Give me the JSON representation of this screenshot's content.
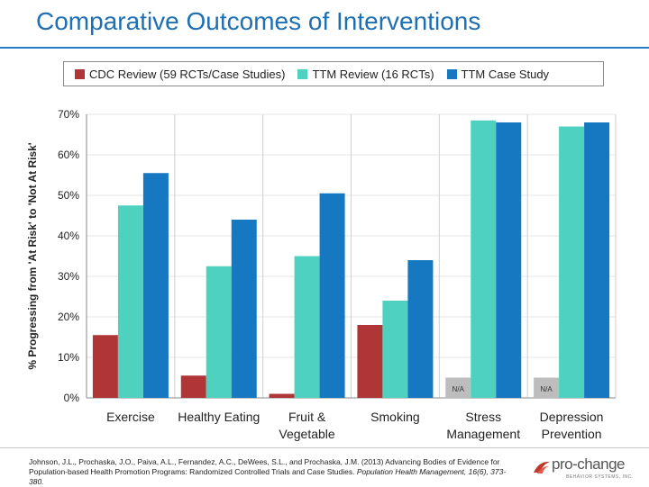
{
  "slide": {
    "title": "Comparative Outcomes of Interventions"
  },
  "citation": {
    "text": "Johnson, J.L., Prochaska, J.O., Paiva, A.L., Fernandez, A.C., DeWees, S.L., and Prochaska, J.M. (2013) Advancing Bodies of Evidence for Population-based Health Promotion Programs: Randomized Controlled Trials and Case Studies. ",
    "journal": "Population Health Management, 16(6), 373-380."
  },
  "logo": {
    "name": "pro-change",
    "subtitle": "BEHAVIOR SYSTEMS, INC."
  },
  "colors": {
    "accent": "#1f6fb3",
    "cdc": "#b03537",
    "ttm_review": "#4fd1c0",
    "ttm_case": "#1578c0",
    "na": "#bdbdbd"
  },
  "chart_data": {
    "type": "bar",
    "ylabel": "% Progressing from 'At Risk' to 'Not At Risk'",
    "xlabel": "",
    "ylim": [
      0,
      70
    ],
    "yticks": [
      0,
      10,
      20,
      30,
      40,
      50,
      60,
      70
    ],
    "ytick_labels": [
      "0%",
      "10%",
      "20%",
      "30%",
      "40%",
      "50%",
      "60%",
      "70%"
    ],
    "categories": [
      [
        "Exercise"
      ],
      [
        "Healthy Eating"
      ],
      [
        "Fruit &",
        "Vegetable"
      ],
      [
        "Smoking"
      ],
      [
        "Stress",
        "Management"
      ],
      [
        "Depression",
        "Prevention"
      ]
    ],
    "legend_position": "top",
    "series": [
      {
        "name": "CDC Review (59 RCTs/Case Studies)",
        "color": "#b03537",
        "values": [
          15.5,
          5.5,
          1,
          18,
          null,
          null
        ]
      },
      {
        "name": "TTM Review (16 RCTs)",
        "color": "#4fd1c0",
        "values": [
          47.5,
          32.5,
          35,
          24,
          68.5,
          67
        ]
      },
      {
        "name": "TTM Case Study",
        "color": "#1578c0",
        "values": [
          55.5,
          44,
          50.5,
          34,
          68,
          68
        ]
      }
    ],
    "na_label": "N/A",
    "na_placeholder_value": 5
  }
}
